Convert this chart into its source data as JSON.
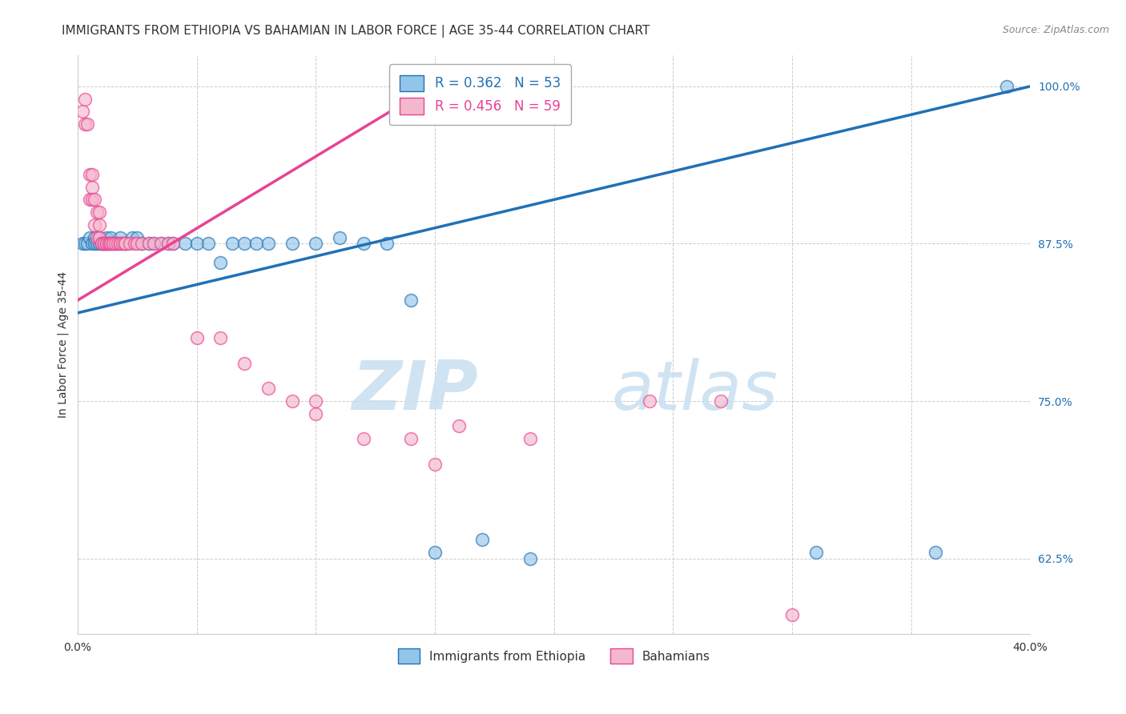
{
  "title": "IMMIGRANTS FROM ETHIOPIA VS BAHAMIAN IN LABOR FORCE | AGE 35-44 CORRELATION CHART",
  "source": "Source: ZipAtlas.com",
  "ylabel": "In Labor Force | Age 35-44",
  "legend_entries": [
    {
      "label": "R = 0.362   N = 53",
      "color": "#6baed6"
    },
    {
      "label": "R = 0.456   N = 59",
      "color": "#fa9fb5"
    }
  ],
  "legend_bottom": [
    {
      "label": "Immigrants from Ethiopia",
      "color": "#6baed6"
    },
    {
      "label": "Bahamians",
      "color": "#fa9fb5"
    }
  ],
  "xlim": [
    0.0,
    0.4
  ],
  "ylim": [
    0.565,
    1.025
  ],
  "yticks": [
    0.625,
    0.75,
    0.875,
    1.0
  ],
  "ytick_labels": [
    "62.5%",
    "75.0%",
    "87.5%",
    "100.0%"
  ],
  "xticks": [
    0.0,
    0.05,
    0.1,
    0.15,
    0.2,
    0.25,
    0.3,
    0.35,
    0.4
  ],
  "xtick_labels": [
    "0.0%",
    "",
    "",
    "",
    "",
    "",
    "",
    "",
    "40.0%"
  ],
  "blue_scatter_x": [
    0.002,
    0.003,
    0.004,
    0.005,
    0.006,
    0.007,
    0.007,
    0.008,
    0.009,
    0.009,
    0.01,
    0.01,
    0.011,
    0.011,
    0.012,
    0.012,
    0.013,
    0.014,
    0.015,
    0.016,
    0.017,
    0.018,
    0.019,
    0.02,
    0.021,
    0.023,
    0.025,
    0.027,
    0.03,
    0.032,
    0.035,
    0.038,
    0.04,
    0.045,
    0.05,
    0.055,
    0.06,
    0.065,
    0.07,
    0.075,
    0.08,
    0.09,
    0.1,
    0.11,
    0.12,
    0.13,
    0.14,
    0.15,
    0.17,
    0.19,
    0.31,
    0.36,
    0.39
  ],
  "blue_scatter_y": [
    0.875,
    0.875,
    0.875,
    0.88,
    0.875,
    0.88,
    0.875,
    0.875,
    0.875,
    0.88,
    0.875,
    0.875,
    0.875,
    0.875,
    0.875,
    0.88,
    0.875,
    0.88,
    0.875,
    0.875,
    0.875,
    0.88,
    0.875,
    0.875,
    0.875,
    0.88,
    0.88,
    0.875,
    0.875,
    0.875,
    0.875,
    0.875,
    0.875,
    0.875,
    0.875,
    0.875,
    0.86,
    0.875,
    0.875,
    0.875,
    0.875,
    0.875,
    0.875,
    0.88,
    0.875,
    0.875,
    0.83,
    0.63,
    0.64,
    0.625,
    0.63,
    0.63,
    1.0
  ],
  "pink_scatter_x": [
    0.002,
    0.003,
    0.003,
    0.004,
    0.005,
    0.005,
    0.006,
    0.006,
    0.006,
    0.007,
    0.007,
    0.008,
    0.008,
    0.009,
    0.009,
    0.009,
    0.01,
    0.01,
    0.011,
    0.011,
    0.012,
    0.012,
    0.013,
    0.013,
    0.014,
    0.014,
    0.015,
    0.015,
    0.016,
    0.017,
    0.018,
    0.018,
    0.019,
    0.02,
    0.02,
    0.022,
    0.024,
    0.025,
    0.027,
    0.03,
    0.032,
    0.035,
    0.038,
    0.04,
    0.05,
    0.06,
    0.07,
    0.08,
    0.09,
    0.1,
    0.1,
    0.12,
    0.14,
    0.15,
    0.16,
    0.19,
    0.24,
    0.27,
    0.3
  ],
  "pink_scatter_y": [
    0.98,
    0.99,
    0.97,
    0.97,
    0.93,
    0.91,
    0.92,
    0.91,
    0.93,
    0.89,
    0.91,
    0.9,
    0.88,
    0.89,
    0.88,
    0.9,
    0.875,
    0.875,
    0.875,
    0.875,
    0.875,
    0.875,
    0.875,
    0.875,
    0.875,
    0.875,
    0.875,
    0.875,
    0.875,
    0.875,
    0.875,
    0.875,
    0.875,
    0.875,
    0.875,
    0.875,
    0.875,
    0.875,
    0.875,
    0.875,
    0.875,
    0.875,
    0.875,
    0.875,
    0.8,
    0.8,
    0.78,
    0.76,
    0.75,
    0.74,
    0.75,
    0.72,
    0.72,
    0.7,
    0.73,
    0.72,
    0.75,
    0.75,
    0.58
  ],
  "blue_color": "#92c5e8",
  "pink_color": "#f4b8cc",
  "blue_line_color": "#2171b5",
  "pink_line_color": "#e84393",
  "watermark_zip": "ZIP",
  "watermark_atlas": "atlas",
  "background_color": "#ffffff",
  "grid_color": "#cccccc",
  "title_fontsize": 11,
  "axis_label_fontsize": 10,
  "tick_fontsize": 10
}
